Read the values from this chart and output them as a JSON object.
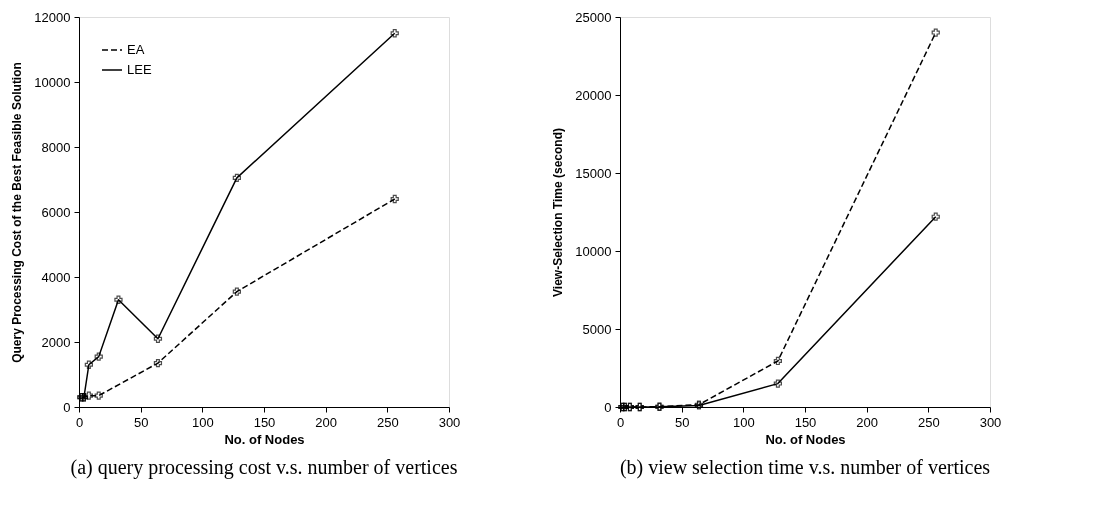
{
  "chart_data": [
    {
      "type": "line",
      "title": "(a) query processing cost v.s. number of vertices",
      "xlabel": "No. of Nodes",
      "ylabel": "Query Processing Cost of the Best Feasible Solution",
      "xlim": [
        0,
        300
      ],
      "xticks": [
        0,
        50,
        100,
        150,
        200,
        250,
        300
      ],
      "ylim": [
        0,
        12000
      ],
      "yticks": [
        0,
        2000,
        4000,
        6000,
        8000,
        10000,
        12000
      ],
      "grid": false,
      "legend": "top left",
      "marker": "cross",
      "series": [
        {
          "name": "EA",
          "color": "#000000",
          "line_style": "dashed",
          "x": [
            2,
            4,
            8,
            16,
            64,
            128,
            256
          ],
          "values": [
            300,
            300,
            350,
            350,
            1350,
            3550,
            6400
          ]
        },
        {
          "name": "LEE",
          "color": "#000000",
          "line_style": "solid",
          "x": [
            2,
            4,
            8,
            16,
            32,
            64,
            128,
            256
          ],
          "values": [
            300,
            300,
            1300,
            1550,
            3300,
            2100,
            7050,
            11500
          ]
        }
      ]
    },
    {
      "type": "line",
      "title": "(b) view selection time v.s. number of vertices",
      "xlabel": "No. of Nodes",
      "ylabel": "View-Selection Time (second)",
      "xlim": [
        0,
        300
      ],
      "xticks": [
        0,
        50,
        100,
        150,
        200,
        250,
        300
      ],
      "ylim": [
        0,
        25000
      ],
      "yticks": [
        0,
        5000,
        10000,
        15000,
        20000,
        25000
      ],
      "grid": false,
      "legend": "top left",
      "marker": "cross",
      "series": [
        {
          "name": "EA",
          "color": "#000000",
          "line_style": "dashed",
          "x": [
            2,
            4,
            8,
            16,
            32,
            64,
            128,
            256
          ],
          "values": [
            0,
            0,
            0,
            0,
            20,
            150,
            2950,
            24000
          ]
        },
        {
          "name": "LEE",
          "color": "#000000",
          "line_style": "solid",
          "x": [
            2,
            4,
            8,
            16,
            32,
            64,
            128,
            256
          ],
          "values": [
            0,
            0,
            0,
            0,
            10,
            100,
            1500,
            12200
          ]
        }
      ]
    }
  ]
}
